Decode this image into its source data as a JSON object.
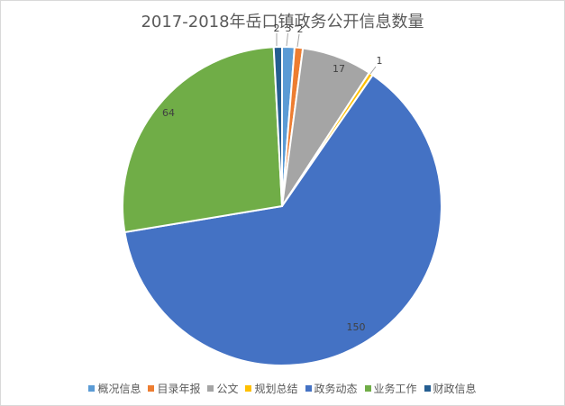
{
  "chart_data": {
    "type": "pie",
    "title": "2017-2018年岳口镇政务公开信息数量",
    "slices": [
      {
        "label": "概况信息",
        "value": 3,
        "color": "#5b9bd5"
      },
      {
        "label": "目录年报",
        "value": 2,
        "color": "#ed7d31"
      },
      {
        "label": "公文",
        "value": 17,
        "color": "#a5a5a5"
      },
      {
        "label": "规划总结",
        "value": 1,
        "color": "#ffc000"
      },
      {
        "label": "政务动态",
        "value": 150,
        "color": "#4472c4"
      },
      {
        "label": "业务工作",
        "value": 64,
        "color": "#70ad47"
      },
      {
        "label": "财政信息",
        "value": 2,
        "color": "#255e91"
      }
    ],
    "start_angle_deg": 0,
    "direction": "clockwise",
    "legend_position": "bottom"
  }
}
